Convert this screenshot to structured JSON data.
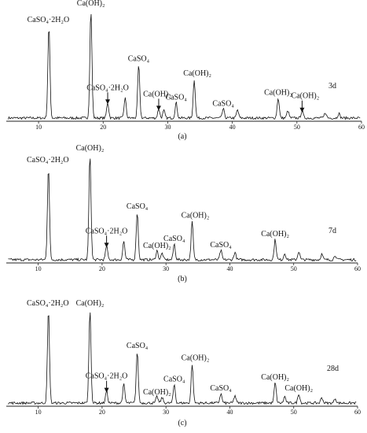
{
  "chart_data": [
    {
      "type": "line",
      "panel_label": "(a)",
      "age_label": "3d",
      "xlim": [
        5,
        60
      ],
      "xticks": [
        10,
        20,
        30,
        40,
        50,
        60
      ],
      "grid": false,
      "peaks": [
        {
          "x": 11.6,
          "h": 1.0,
          "label": "CaSO₄·2H₂O",
          "arrow": false
        },
        {
          "x": 18.1,
          "h": 1.18,
          "label": "Ca(OH)₂",
          "arrow": false
        },
        {
          "x": 20.7,
          "h": 0.17,
          "label": "CaSO₄·2H₂O",
          "arrow": true
        },
        {
          "x": 23.4,
          "h": 0.22,
          "label": "",
          "arrow": false
        },
        {
          "x": 25.5,
          "h": 0.58,
          "label": "CaSO₄",
          "arrow": false
        },
        {
          "x": 28.6,
          "h": 0.1,
          "label": "Ca(OH)₂",
          "arrow": true
        },
        {
          "x": 29.4,
          "h": 0.08,
          "label": "",
          "arrow": false
        },
        {
          "x": 31.3,
          "h": 0.17,
          "label": "CaSO₄",
          "arrow": false
        },
        {
          "x": 34.1,
          "h": 0.42,
          "label": "Ca(OH)₂",
          "arrow": false
        },
        {
          "x": 38.6,
          "h": 0.1,
          "label": "CaSO₄",
          "arrow": false
        },
        {
          "x": 40.8,
          "h": 0.09,
          "label": "",
          "arrow": false
        },
        {
          "x": 47.1,
          "h": 0.22,
          "label": "Ca(OH)₂",
          "arrow": false
        },
        {
          "x": 48.6,
          "h": 0.08,
          "label": "",
          "arrow": false
        },
        {
          "x": 50.8,
          "h": 0.08,
          "label": "Ca(OH)₂",
          "arrow": true
        },
        {
          "x": 54.4,
          "h": 0.06,
          "label": "",
          "arrow": false
        },
        {
          "x": 56.5,
          "h": 0.05,
          "label": "",
          "arrow": false
        }
      ]
    },
    {
      "type": "line",
      "panel_label": "(b)",
      "age_label": "7d",
      "xlim": [
        5,
        60
      ],
      "xticks": [
        10,
        20,
        30,
        40,
        50,
        60
      ],
      "grid": false,
      "peaks": [
        {
          "x": 11.6,
          "h": 1.0,
          "label": "CaSO₄·2H₂O",
          "arrow": false
        },
        {
          "x": 18.1,
          "h": 1.13,
          "label": "Ca(OH)₂",
          "arrow": false
        },
        {
          "x": 20.7,
          "h": 0.15,
          "label": "CaSO₄·2H₂O",
          "arrow": true
        },
        {
          "x": 23.4,
          "h": 0.2,
          "label": "",
          "arrow": false
        },
        {
          "x": 25.5,
          "h": 0.51,
          "label": "CaSO₄",
          "arrow": false
        },
        {
          "x": 28.6,
          "h": 0.1,
          "label": "Ca(OH)₂",
          "arrow": false
        },
        {
          "x": 29.4,
          "h": 0.07,
          "label": "",
          "arrow": false
        },
        {
          "x": 31.3,
          "h": 0.17,
          "label": "CaSO₄",
          "arrow": false
        },
        {
          "x": 34.1,
          "h": 0.41,
          "label": "Ca(OH)₂",
          "arrow": false
        },
        {
          "x": 38.6,
          "h": 0.1,
          "label": "CaSO₄",
          "arrow": false
        },
        {
          "x": 40.8,
          "h": 0.08,
          "label": "",
          "arrow": false
        },
        {
          "x": 47.1,
          "h": 0.22,
          "label": "Ca(OH)₂",
          "arrow": false
        },
        {
          "x": 48.6,
          "h": 0.07,
          "label": "",
          "arrow": false
        },
        {
          "x": 50.8,
          "h": 0.09,
          "label": "",
          "arrow": false
        },
        {
          "x": 54.4,
          "h": 0.06,
          "label": "",
          "arrow": false
        },
        {
          "x": 56.5,
          "h": 0.05,
          "label": "",
          "arrow": false
        }
      ]
    },
    {
      "type": "line",
      "panel_label": "(c)",
      "age_label": "28d",
      "xlim": [
        5,
        60
      ],
      "xticks": [
        10,
        20,
        30,
        40,
        50,
        60
      ],
      "grid": false,
      "peaks": [
        {
          "x": 11.6,
          "h": 1.0,
          "label": "CaSO₄·2H₂O",
          "arrow": false
        },
        {
          "x": 18.1,
          "h": 1.0,
          "label": "Ca(OH)₂",
          "arrow": false
        },
        {
          "x": 20.7,
          "h": 0.13,
          "label": "CaSO₄·2H₂O",
          "arrow": true
        },
        {
          "x": 23.4,
          "h": 0.2,
          "label": "",
          "arrow": false
        },
        {
          "x": 25.5,
          "h": 0.55,
          "label": "CaSO₄",
          "arrow": false
        },
        {
          "x": 28.6,
          "h": 0.07,
          "label": "Ca(OH)₂",
          "arrow": false
        },
        {
          "x": 29.4,
          "h": 0.06,
          "label": "",
          "arrow": false
        },
        {
          "x": 31.3,
          "h": 0.2,
          "label": "CaSO₄",
          "arrow": false
        },
        {
          "x": 34.1,
          "h": 0.42,
          "label": "Ca(OH)₂",
          "arrow": false
        },
        {
          "x": 38.6,
          "h": 0.1,
          "label": "CaSO₄",
          "arrow": false
        },
        {
          "x": 40.8,
          "h": 0.08,
          "label": "",
          "arrow": false
        },
        {
          "x": 47.1,
          "h": 0.22,
          "label": "Ca(OH)₂",
          "arrow": false
        },
        {
          "x": 48.6,
          "h": 0.07,
          "label": "",
          "arrow": false
        },
        {
          "x": 50.8,
          "h": 0.1,
          "label": "Ca(OH)₂",
          "arrow": false
        },
        {
          "x": 54.4,
          "h": 0.06,
          "label": "",
          "arrow": false
        },
        {
          "x": 56.5,
          "h": 0.05,
          "label": "",
          "arrow": false
        }
      ]
    }
  ]
}
